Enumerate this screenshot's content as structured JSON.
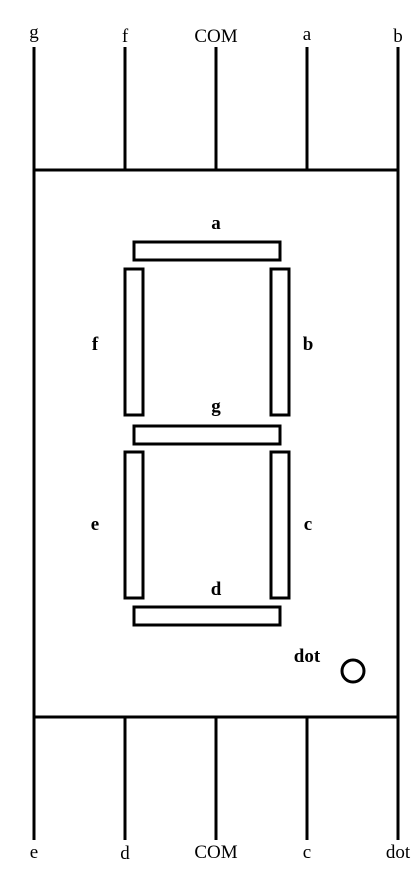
{
  "top_pins": [
    "g",
    "f",
    "COM",
    "a",
    "b"
  ],
  "bottom_pins": [
    "e",
    "d",
    "COM",
    "c",
    "dot"
  ],
  "segments": {
    "a": "a",
    "b": "b",
    "c": "c",
    "d": "d",
    "e": "e",
    "f": "f",
    "g": "g"
  },
  "dot_label": "dot"
}
